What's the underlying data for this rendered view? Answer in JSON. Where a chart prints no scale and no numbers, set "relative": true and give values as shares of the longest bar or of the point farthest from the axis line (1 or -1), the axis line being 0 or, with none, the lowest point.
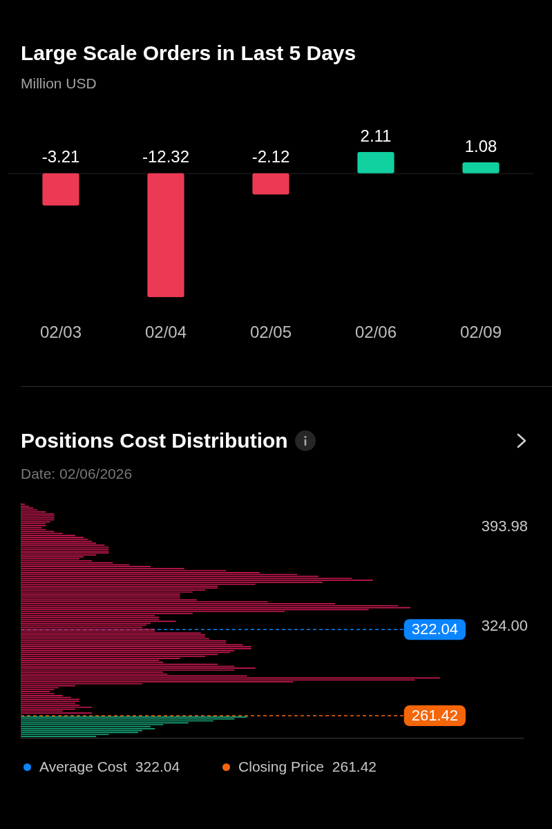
{
  "chart_data": [
    {
      "type": "bar",
      "title": "Large Scale Orders in Last 5 Days",
      "subtitle": "Million USD",
      "categories": [
        "02/03",
        "02/04",
        "02/05",
        "02/06",
        "02/09"
      ],
      "values": [
        -3.21,
        -12.32,
        -2.12,
        2.11,
        1.08
      ],
      "colors": [
        "#ec3a55",
        "#ec3a55",
        "#ec3a55",
        "#10d0a0",
        "#10d0a0"
      ],
      "data_labels": true
    },
    {
      "type": "bar",
      "orientation": "horizontal",
      "title": "Positions Cost Distribution",
      "subtitle": "Date: 02/06/2026",
      "relative": true,
      "tick_labels": "y",
      "ylim": [
        245.5,
        411
      ],
      "yticks": [
        393.98,
        {
          "value": 324,
          "label": "324.00"
        }
      ],
      "series": [
        {
          "color": "#c8194f",
          "x": [
            410.2,
            408.8,
            407.5,
            406.1,
            404.7,
            403.3,
            402.0,
            400.6,
            399.2,
            397.8,
            396.5,
            395.1,
            393.7,
            392.4,
            391.0,
            389.6,
            388.2,
            386.9,
            385.5,
            384.1,
            382.7,
            381.4,
            380.0,
            378.6,
            377.2,
            375.9,
            374.5,
            373.1,
            371.8,
            370.4,
            369.0,
            367.6,
            366.3,
            364.9,
            363.5,
            362.1,
            360.8,
            359.4,
            358.0,
            356.7,
            355.3,
            353.9,
            352.5,
            351.2,
            349.8,
            348.4,
            347.0,
            345.7,
            344.3,
            342.9,
            341.6,
            340.2,
            338.8,
            337.4,
            336.1,
            334.7,
            333.3,
            331.9,
            330.6,
            329.2,
            327.8,
            326.4,
            325.1,
            323.7,
            322.3,
            321.0,
            319.6,
            318.2,
            316.8,
            315.5,
            314.1,
            312.7,
            311.3,
            310.0,
            308.6,
            307.2,
            305.9,
            304.5,
            303.1,
            301.7,
            300.4,
            299.0,
            297.6,
            296.2,
            294.9,
            293.5,
            292.1,
            290.7,
            289.4,
            288.0,
            286.6,
            285.3,
            283.9,
            282.5,
            281.1,
            279.8,
            278.4,
            277.0,
            275.6,
            274.3,
            272.9,
            271.5,
            270.2,
            268.8,
            267.4,
            266.0,
            264.7,
            263.3
          ],
          "values": [
            0.01,
            0.02,
            0.03,
            0.04,
            0.06,
            0.08,
            0.08,
            0.08,
            0.08,
            0.07,
            0.06,
            0.06,
            0.05,
            0.06,
            0.08,
            0.1,
            0.13,
            0.15,
            0.16,
            0.17,
            0.18,
            0.2,
            0.21,
            0.21,
            0.21,
            0.21,
            0.18,
            0.15,
            0.14,
            0.17,
            0.22,
            0.26,
            0.31,
            0.39,
            0.49,
            0.57,
            0.66,
            0.71,
            0.79,
            0.84,
            0.72,
            0.56,
            0.47,
            0.47,
            0.44,
            0.41,
            0.38,
            0.38,
            0.38,
            0.42,
            0.59,
            0.75,
            0.9,
            0.93,
            0.83,
            0.63,
            0.41,
            0.32,
            0.33,
            0.33,
            0.37,
            0.31,
            0.3,
            0.29,
            0.32,
            0.32,
            0.43,
            0.44,
            0.44,
            0.45,
            0.49,
            0.49,
            0.53,
            0.55,
            0.55,
            0.51,
            0.5,
            0.47,
            0.44,
            0.38,
            0.33,
            0.34,
            0.47,
            0.51,
            0.56,
            0.51,
            0.34,
            0.35,
            0.54,
            1,
            0.94,
            0.65,
            0.29,
            0.13,
            0.09,
            0.08,
            0.07,
            0.08,
            0.1,
            0.12,
            0.14,
            0.14,
            0.13,
            0.14,
            0.17,
            0.13,
            0.1,
            0.17
          ]
        },
        {
          "color": "#17a57a",
          "x": [
            260.5,
            259.2,
            257.8,
            256.4,
            255.1,
            253.7,
            252.3,
            250.9,
            249.6,
            248.2,
            246.8
          ],
          "values": [
            0.54,
            0.51,
            0.46,
            0.4,
            0.34,
            0.31,
            0.32,
            0.29,
            0.28,
            0.21,
            0.18
          ]
        }
      ],
      "ref_lines": [
        {
          "axis": "y",
          "value": 322.04,
          "label": "Average Cost",
          "color": "#0a84ff",
          "line_style": "dashed"
        },
        {
          "axis": "y",
          "value": 261.42,
          "label": "Closing Price",
          "color": "#f5650a",
          "line_style": "dashed"
        }
      ],
      "annotations": [
        "322.04",
        "261.42"
      ],
      "legend": "bottom"
    }
  ]
}
